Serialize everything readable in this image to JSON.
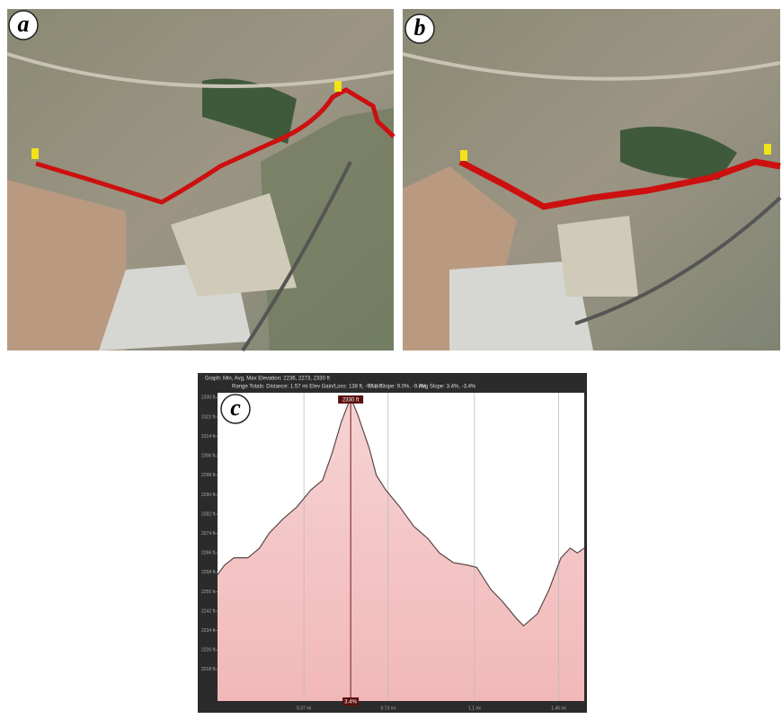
{
  "panels": [
    {
      "label": "a"
    },
    {
      "label": "b"
    }
  ],
  "chart_data": {
    "type": "line",
    "label": "c",
    "header": [
      "Graph: Min, Avg, Max  Elevation: 2236, 2273, 2330 ft",
      "Range Totals: Distance: 1.57 mi   Elev Gain/Loss: 138 ft, -97.2 ft",
      "Max Slope: 9.0%, -9.0%",
      "Avg Slope: 3.4%, -3.4%"
    ],
    "x": [
      0,
      0.03,
      0.07,
      0.13,
      0.18,
      0.22,
      0.28,
      0.34,
      0.4,
      0.45,
      0.49,
      0.53,
      0.57,
      0.6,
      0.65,
      0.68,
      0.72,
      0.78,
      0.84,
      0.9,
      0.95,
      1.01,
      1.07,
      1.11,
      1.17,
      1.22,
      1.28,
      1.31,
      1.37,
      1.42,
      1.47,
      1.51,
      1.54,
      1.57
    ],
    "series": [
      {
        "color": "#5a4848",
        "values": [
          2257,
          2261,
          2264,
          2264,
          2268,
          2274,
          2280,
          2285,
          2292,
          2296,
          2307,
          2320,
          2330,
          2323,
          2309,
          2298,
          2292,
          2285,
          2277,
          2272,
          2266,
          2262,
          2261,
          2260,
          2251,
          2246,
          2239,
          2236,
          2241,
          2251,
          2264,
          2268,
          2266,
          2268
        ]
      }
    ],
    "xlim": [
      0,
      1.57
    ],
    "ylim": [
      2205,
      2332
    ],
    "yticks": [
      {
        "value": 2218,
        "label": "2218 ft"
      },
      {
        "value": 2226,
        "label": "2226 ft"
      },
      {
        "value": 2234,
        "label": "2234 ft"
      },
      {
        "value": 2242,
        "label": "2242 ft"
      },
      {
        "value": 2250,
        "label": "2250 ft"
      },
      {
        "value": 2258,
        "label": "2258 ft"
      },
      {
        "value": 2266,
        "label": "2266 ft"
      },
      {
        "value": 2274,
        "label": "2274 ft"
      },
      {
        "value": 2282,
        "label": "2282 ft"
      },
      {
        "value": 2290,
        "label": "2290 ft"
      },
      {
        "value": 2298,
        "label": "2298 ft"
      },
      {
        "value": 2306,
        "label": "2306 ft"
      },
      {
        "value": 2314,
        "label": "2314 ft"
      },
      {
        "value": 2322,
        "label": "2322 ft"
      },
      {
        "value": 2330,
        "label": "2330 ft"
      }
    ],
    "xticks": [
      {
        "value": 0.37,
        "label": "0.37 mi"
      },
      {
        "value": 0.73,
        "label": "0.73 mi"
      },
      {
        "value": 1.1,
        "label": "1.1 mi"
      },
      {
        "value": 1.46,
        "label": "1.46 mi"
      }
    ],
    "marker": {
      "x": 0.57,
      "value": 2330,
      "label": "2330 ft",
      "slope": "3.4%"
    },
    "grid": true
  }
}
